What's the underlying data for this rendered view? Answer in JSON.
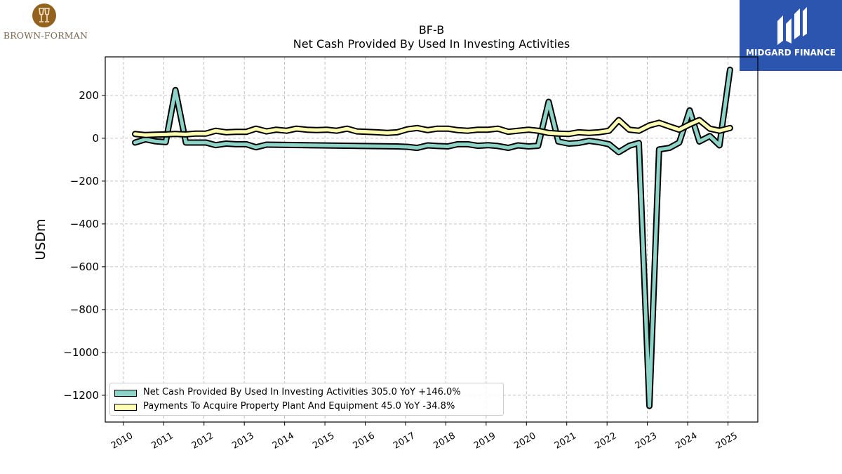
{
  "header": {
    "company_name": "BROWN-FORMAN",
    "brand_name": "MIDGARD FINANCE"
  },
  "colors": {
    "series_1": "#8dd3c7",
    "series_2": "#ffffb3",
    "outline": "#000000",
    "brand_blue": "#2b55ae",
    "company_gold": "#94621f"
  },
  "icons": {
    "company_logo": "wine-glasses-emblem-icon",
    "brand_logo": "midgard-monogram-icon"
  },
  "chart_data": {
    "type": "line",
    "title": "BF-B",
    "subtitle": "Net Cash Provided By Used In Investing Activities",
    "ylabel": "USDm",
    "xlabel": "",
    "xlim": [
      2009.55,
      2025.74
    ],
    "ylim": [
      -1325,
      380
    ],
    "grid": true,
    "legend_position": "lower-left",
    "x_ticks": [
      "2010",
      "2011",
      "2012",
      "2013",
      "2014",
      "2015",
      "2016",
      "2017",
      "2018",
      "2019",
      "2020",
      "2021",
      "2022",
      "2023",
      "2024",
      "2025"
    ],
    "y_ticks": [
      200,
      0,
      -200,
      -400,
      -600,
      -800,
      -1000,
      -1200
    ],
    "y_tick_labels": [
      "200",
      "0",
      "−200",
      "−400",
      "−600",
      "−800",
      "−1000",
      "−1200"
    ],
    "series": [
      {
        "name": "Net Cash Provided By Used In Investing Activities",
        "legend_label": "Net Cash Provided By Used In Investing Activities  305.0 YoY +146.0%",
        "color": "#8dd3c7",
        "points": [
          [
            2010.29,
            -20
          ],
          [
            2010.55,
            -5
          ],
          [
            2010.79,
            -14
          ],
          [
            2011.05,
            -18
          ],
          [
            2011.29,
            225
          ],
          [
            2011.55,
            -20
          ],
          [
            2011.79,
            -20
          ],
          [
            2012.05,
            -20
          ],
          [
            2012.29,
            -32
          ],
          [
            2012.55,
            -25
          ],
          [
            2012.79,
            -28
          ],
          [
            2013.05,
            -28
          ],
          [
            2013.29,
            -42
          ],
          [
            2013.55,
            -30
          ],
          [
            2016.79,
            -38
          ],
          [
            2017.05,
            -40
          ],
          [
            2017.29,
            -45
          ],
          [
            2017.55,
            -33
          ],
          [
            2017.79,
            -36
          ],
          [
            2018.05,
            -38
          ],
          [
            2018.29,
            -28
          ],
          [
            2018.55,
            -28
          ],
          [
            2018.79,
            -35
          ],
          [
            2019.05,
            -32
          ],
          [
            2019.29,
            -36
          ],
          [
            2019.55,
            -45
          ],
          [
            2019.79,
            -33
          ],
          [
            2020.05,
            -38
          ],
          [
            2020.29,
            -35
          ],
          [
            2020.55,
            170
          ],
          [
            2020.79,
            -15
          ],
          [
            2021.05,
            -25
          ],
          [
            2021.29,
            -22
          ],
          [
            2021.55,
            -12
          ],
          [
            2021.79,
            -18
          ],
          [
            2022.05,
            -28
          ],
          [
            2022.29,
            -65
          ],
          [
            2022.55,
            -35
          ],
          [
            2022.79,
            -22
          ],
          [
            2023.05,
            -1250
          ],
          [
            2023.29,
            -52
          ],
          [
            2023.55,
            -45
          ],
          [
            2023.79,
            -20
          ],
          [
            2024.05,
            130
          ],
          [
            2024.29,
            -15
          ],
          [
            2024.55,
            10
          ],
          [
            2024.79,
            -33
          ],
          [
            2025.05,
            320
          ]
        ]
      },
      {
        "name": "Payments To Acquire Property Plant And Equipment",
        "legend_label": "Payments To Acquire Property Plant And Equipment  45.0 YoY -34.8%",
        "color": "#ffffb3",
        "points": [
          [
            2010.29,
            20
          ],
          [
            2010.55,
            15
          ],
          [
            2010.79,
            17
          ],
          [
            2011.05,
            18
          ],
          [
            2011.29,
            20
          ],
          [
            2011.55,
            18
          ],
          [
            2011.79,
            22
          ],
          [
            2012.05,
            22
          ],
          [
            2012.29,
            35
          ],
          [
            2012.55,
            28
          ],
          [
            2012.79,
            30
          ],
          [
            2013.05,
            30
          ],
          [
            2013.29,
            45
          ],
          [
            2013.55,
            32
          ],
          [
            2013.79,
            40
          ],
          [
            2014.05,
            35
          ],
          [
            2014.29,
            45
          ],
          [
            2014.55,
            40
          ],
          [
            2014.79,
            38
          ],
          [
            2015.05,
            40
          ],
          [
            2015.29,
            35
          ],
          [
            2015.55,
            45
          ],
          [
            2015.79,
            32
          ],
          [
            2016.05,
            30
          ],
          [
            2016.29,
            28
          ],
          [
            2016.55,
            25
          ],
          [
            2016.79,
            28
          ],
          [
            2017.05,
            42
          ],
          [
            2017.29,
            48
          ],
          [
            2017.55,
            38
          ],
          [
            2017.79,
            45
          ],
          [
            2018.05,
            45
          ],
          [
            2018.29,
            38
          ],
          [
            2018.55,
            35
          ],
          [
            2018.79,
            40
          ],
          [
            2019.05,
            40
          ],
          [
            2019.29,
            45
          ],
          [
            2019.55,
            30
          ],
          [
            2019.79,
            35
          ],
          [
            2020.05,
            40
          ],
          [
            2020.29,
            35
          ],
          [
            2020.55,
            25
          ],
          [
            2020.79,
            22
          ],
          [
            2021.05,
            20
          ],
          [
            2021.29,
            28
          ],
          [
            2021.55,
            25
          ],
          [
            2021.79,
            28
          ],
          [
            2022.05,
            35
          ],
          [
            2022.29,
            85
          ],
          [
            2022.55,
            40
          ],
          [
            2022.79,
            35
          ],
          [
            2023.05,
            60
          ],
          [
            2023.29,
            72
          ],
          [
            2023.55,
            55
          ],
          [
            2023.79,
            40
          ],
          [
            2024.05,
            65
          ],
          [
            2024.29,
            85
          ],
          [
            2024.55,
            45
          ],
          [
            2024.79,
            35
          ],
          [
            2025.05,
            48
          ]
        ]
      }
    ]
  }
}
